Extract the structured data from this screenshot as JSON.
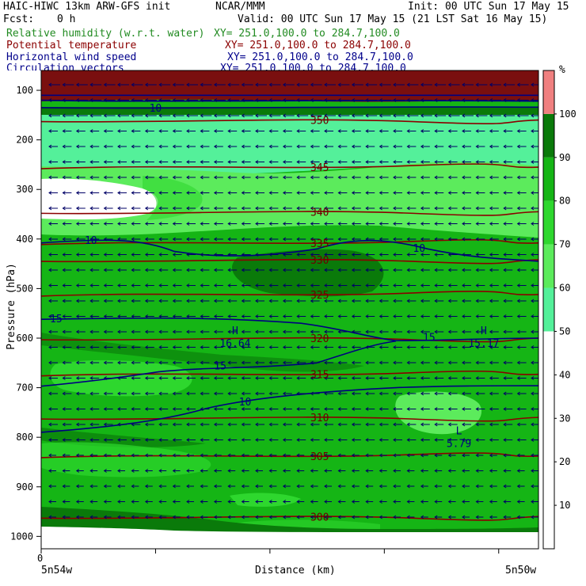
{
  "header": {
    "model": "HAIC-HIWC 13km ARW-GFS init",
    "org": "NCAR/MMM",
    "init": "Init: 00 UTC Sun 17 May 15",
    "fcst_label": "Fcst:",
    "fcst_value": "0 h",
    "valid": "Valid: 00 UTC Sun 17 May 15 (21 LST Sat 16 May 15)"
  },
  "fields": [
    {
      "name": "Relative humidity (w.r.t. water)",
      "xy": "XY= 251.0,100.0 to 284.7,100.0",
      "color": "#228B22"
    },
    {
      "name": "Potential temperature",
      "xy": "XY= 251.0,100.0 to 284.7,100.0",
      "color": "#8B0000"
    },
    {
      "name": "Horizontal wind speed",
      "xy": "XY= 251.0,100.0 to 284.7,100.0",
      "color": "#00008B"
    },
    {
      "name": "Circulation vectors",
      "xy": "XY= 251.0,100.0 to 284.7,100.0",
      "color": "#00008B"
    }
  ],
  "chart_data": {
    "type": "heatmap",
    "ylabel": "Pressure (hPa)",
    "xlabel": "Distance (km)",
    "x_left_label": "5n54w",
    "x_right_label": "5n50w",
    "x_zero_label": "0",
    "yticks": [
      100,
      200,
      300,
      400,
      500,
      600,
      700,
      800,
      900,
      1000
    ],
    "ylim": [
      1025,
      60
    ],
    "colorbar": {
      "unit": "%",
      "levels": [
        10,
        20,
        30,
        40,
        50,
        60,
        70,
        80,
        90,
        100
      ],
      "bands": [
        {
          "from": 0,
          "to": 50,
          "color": "#ffffff"
        },
        {
          "from": 50,
          "to": 60,
          "color": "#54f09a"
        },
        {
          "from": 60,
          "to": 70,
          "color": "#5ceb5c"
        },
        {
          "from": 70,
          "to": 80,
          "color": "#2ed72e"
        },
        {
          "from": 80,
          "to": 90,
          "color": "#15b515"
        },
        {
          "from": 90,
          "to": 100,
          "color": "#0a7a0a"
        },
        {
          "from": 100,
          "to": 110,
          "color": "#f08080"
        }
      ]
    },
    "theta_contours": [
      {
        "label": "350",
        "p": 160
      },
      {
        "label": "345",
        "p": 255
      },
      {
        "label": "340",
        "p": 345
      },
      {
        "label": "335",
        "p": 408
      },
      {
        "label": "330",
        "p": 442
      },
      {
        "label": "325",
        "p": 512
      },
      {
        "label": "320",
        "p": 600
      },
      {
        "label": "315",
        "p": 673
      },
      {
        "label": "310",
        "p": 760
      },
      {
        "label": "305",
        "p": 838
      },
      {
        "label": "300",
        "p": 960
      }
    ],
    "wind_labels": [
      {
        "label": "10",
        "x": 0.23,
        "p": 135
      },
      {
        "label": "10",
        "x": 0.1,
        "p": 402
      },
      {
        "label": "10",
        "x": 0.76,
        "p": 418
      },
      {
        "label": "15",
        "x": 0.03,
        "p": 560
      },
      {
        "label": "15",
        "x": 0.36,
        "p": 655
      },
      {
        "label": "15",
        "x": 0.78,
        "p": 598
      },
      {
        "label": "10",
        "x": 0.41,
        "p": 728
      }
    ],
    "extrema": [
      {
        "type": "H",
        "value": "16.64",
        "x": 0.39,
        "p": 595
      },
      {
        "type": "H",
        "value": "15.17",
        "x": 0.89,
        "p": 595
      },
      {
        "type": "L",
        "value": "5.79",
        "x": 0.84,
        "p": 797
      }
    ]
  }
}
